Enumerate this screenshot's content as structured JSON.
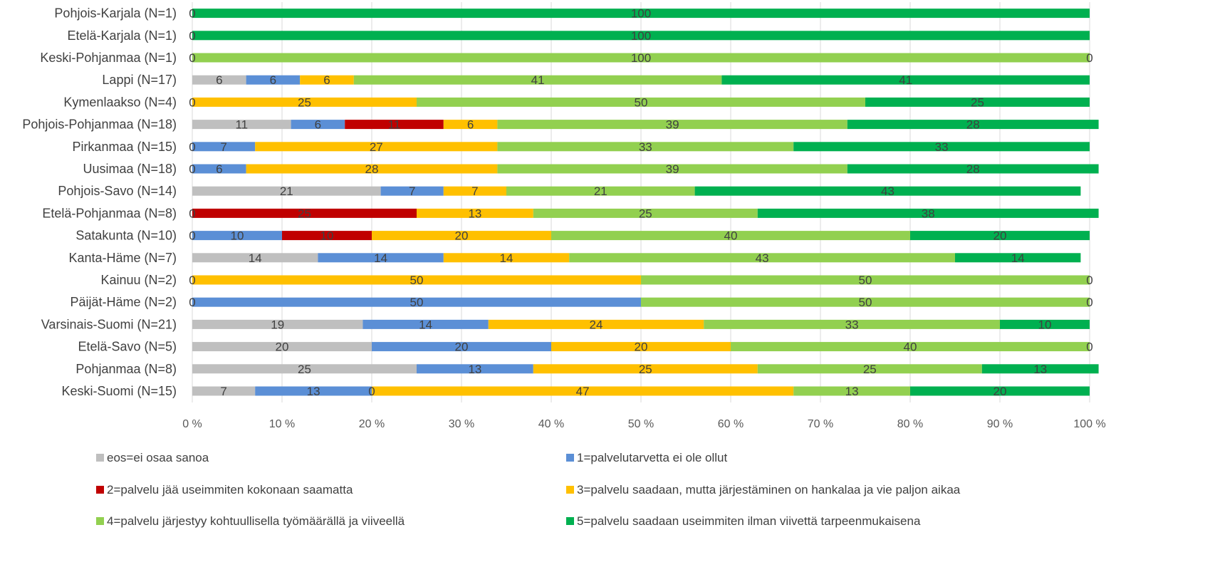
{
  "chart_data": {
    "type": "bar",
    "orientation": "horizontal",
    "stacked": "percent",
    "categories": [
      "Pohjois-Karjala (N=1)",
      "Etelä-Karjala (N=1)",
      "Keski-Pohjanmaa (N=1)",
      "Lappi (N=17)",
      "Kymenlaakso (N=4)",
      "Pohjois-Pohjanmaa (N=18)",
      "Pirkanmaa (N=15)",
      "Uusimaa (N=18)",
      "Pohjois-Savo (N=14)",
      "Etelä-Pohjanmaa (N=8)",
      "Satakunta (N=10)",
      "Kanta-Häme (N=7)",
      "Kainuu (N=2)",
      "Päijät-Häme (N=2)",
      "Varsinais-Suomi (N=21)",
      "Etelä-Savo (N=5)",
      "Pohjanmaa (N=8)",
      "Keski-Suomi (N=15)"
    ],
    "series": [
      {
        "name": "eos=ei osaa sanoa",
        "color": "#bfbfbf",
        "values": [
          0,
          0,
          0,
          6,
          0,
          11,
          0,
          0,
          21,
          0,
          0,
          14,
          0,
          0,
          19,
          20,
          25,
          7
        ],
        "labels": [
          "0",
          "0",
          "0",
          "6",
          "0",
          "11",
          "0",
          "0",
          "21",
          "0",
          "0",
          "14",
          "0",
          "0",
          "19",
          "20",
          "25",
          "7"
        ]
      },
      {
        "name": "1=palvelutarvetta ei ole ollut",
        "color": "#5b8fd6",
        "values": [
          0,
          0,
          0,
          6,
          0,
          6,
          7,
          6,
          7,
          0,
          10,
          14,
          0,
          50,
          14,
          20,
          13,
          13
        ],
        "labels": [
          "",
          "",
          "",
          "6",
          "",
          "6",
          "7",
          "6",
          "7",
          "",
          "10",
          "14",
          "",
          "50",
          "14",
          "20",
          "13",
          "13"
        ]
      },
      {
        "name": "2=palvelu jää useimmiten kokonaan saamatta",
        "color": "#c00000",
        "values": [
          0,
          0,
          0,
          0,
          0,
          11,
          0,
          0,
          0,
          25,
          10,
          0,
          0,
          0,
          0,
          0,
          0,
          0
        ],
        "labels": [
          "",
          "",
          "",
          "",
          "",
          "11",
          "",
          "",
          "",
          "25",
          "10",
          "",
          "",
          "",
          "",
          "",
          "",
          "0"
        ]
      },
      {
        "name": "3=palvelu saadaan, mutta järjestäminen on hankalaa ja vie paljon aikaa",
        "color": "#ffc000",
        "values": [
          0,
          0,
          0,
          6,
          25,
          6,
          27,
          28,
          7,
          13,
          20,
          14,
          50,
          0,
          24,
          20,
          25,
          47
        ],
        "labels": [
          "",
          "",
          "",
          "6",
          "25",
          "6",
          "27",
          "28",
          "7",
          "13",
          "20",
          "14",
          "50",
          "",
          "24",
          "20",
          "25",
          "47"
        ]
      },
      {
        "name": "4=palvelu järjestyy kohtuullisella työmäärällä ja viiveellä",
        "color": "#92d050",
        "values": [
          0,
          0,
          100,
          41,
          50,
          39,
          33,
          39,
          21,
          25,
          40,
          43,
          50,
          50,
          33,
          40,
          25,
          13
        ],
        "labels": [
          "",
          "",
          "100",
          "41",
          "50",
          "39",
          "33",
          "39",
          "21",
          "25",
          "40",
          "43",
          "50",
          "50",
          "33",
          "40",
          "25",
          "13"
        ]
      },
      {
        "name": "5=palvelu saadaan useimmiten ilman viivettä tarpeenmukaisena",
        "color": "#00b050",
        "values": [
          100,
          100,
          0,
          41,
          25,
          28,
          33,
          28,
          43,
          38,
          20,
          14,
          0,
          0,
          10,
          0,
          13,
          20
        ],
        "labels": [
          "100",
          "100",
          "0",
          "41",
          "25",
          "28",
          "33",
          "28",
          "43",
          "38",
          "20",
          "14",
          "0",
          "0",
          "10",
          "0",
          "13",
          "20"
        ]
      }
    ],
    "x_ticks": [
      "0 %",
      "10 %",
      "20 %",
      "30 %",
      "40 %",
      "50 %",
      "60 %",
      "70 %",
      "80 %",
      "90 %",
      "100 %"
    ],
    "xlim": [
      0,
      100
    ],
    "grid": true,
    "legend_position": "bottom"
  }
}
